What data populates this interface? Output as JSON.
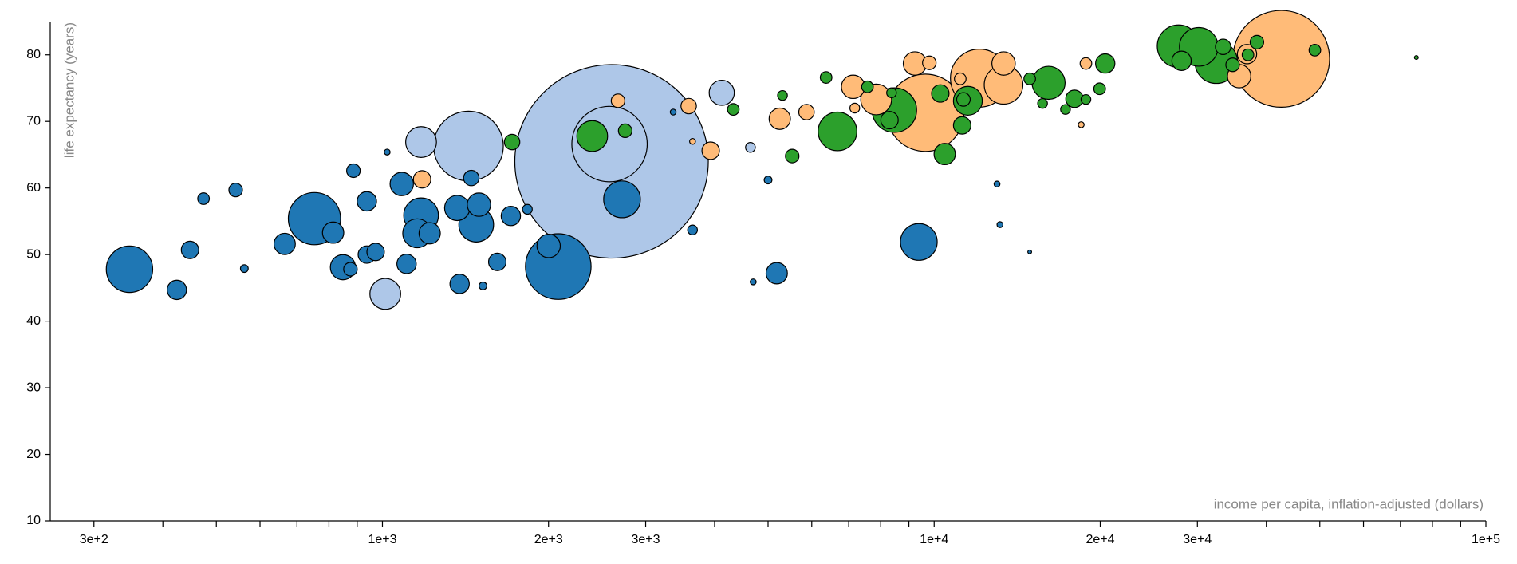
{
  "chart_data": {
    "type": "bubble",
    "xlog": true,
    "xlabel": "income per capita, inflation-adjusted (dollars)",
    "ylabel": "life expectancy (years)",
    "xlim": [
      250,
      100000
    ],
    "ylim": [
      10,
      85
    ],
    "xticks": [
      {
        "value": 300,
        "label": "3e+2"
      },
      {
        "value": 1000,
        "label": "1e+3"
      },
      {
        "value": 2000,
        "label": "2e+3"
      },
      {
        "value": 3000,
        "label": "3e+3"
      },
      {
        "value": 10000,
        "label": "1e+4"
      },
      {
        "value": 20000,
        "label": "2e+4"
      },
      {
        "value": 30000,
        "label": "3e+4"
      },
      {
        "value": 100000,
        "label": "1e+5"
      }
    ],
    "xminorticks": [
      400,
      500,
      600,
      700,
      800,
      900,
      4000,
      5000,
      6000,
      7000,
      8000,
      9000,
      40000,
      50000,
      60000,
      70000,
      80000,
      90000
    ],
    "yticks": [
      10,
      20,
      30,
      40,
      50,
      60,
      70,
      80
    ],
    "series": [
      {
        "color": "#1f77b4",
        "x": [
          348,
          424,
          448,
          474,
          542,
          562,
          665,
          753,
          814,
          848,
          875,
          886,
          937,
          937,
          972,
          1106,
          1084,
          1020,
          1175,
          1156,
          1218,
          1366,
          1479,
          1496,
          1449,
          1380,
          1521,
          1615,
          1709,
          1831,
          2083,
          2001,
          2718,
          3648,
          4699,
          5184,
          5000,
          9380,
          13000,
          13160,
          14900,
          3365
        ],
        "values": [
          47.8,
          44.7,
          50.7,
          58.4,
          59.7,
          47.9,
          51.6,
          55.4,
          53.3,
          48.1,
          47.8,
          62.6,
          58.0,
          50.0,
          50.4,
          48.6,
          60.6,
          65.4,
          55.9,
          53.2,
          53.2,
          57.0,
          54.5,
          57.5,
          61.5,
          45.6,
          45.3,
          48.9,
          55.8,
          56.8,
          48.2,
          51.3,
          58.3,
          53.7,
          45.9,
          47.2,
          61.2,
          51.9,
          60.6,
          54.5,
          50.4,
          71.4
        ],
        "sizes": [
          75,
          13,
          10.6,
          4.7,
          6.4,
          2.1,
          15.8,
          95,
          15.8,
          22,
          6.4,
          6.4,
          13,
          10.6,
          10.6,
          13,
          19,
          1.2,
          42,
          29,
          15.8,
          22,
          42,
          19,
          8.3,
          13,
          2.1,
          10.6,
          13,
          3.3,
          150,
          19,
          47,
          3.3,
          1.2,
          15.8,
          2.1,
          47,
          1.2,
          1.2,
          0.5,
          1.2
        ]
      },
      {
        "color": "#aec7e8",
        "x": [
          2602,
          2580,
          1432,
          1175,
          1012,
          4121,
          4645
        ],
        "values": [
          64.0,
          66.6,
          66.3,
          66.9,
          44.1,
          74.3,
          66.1
        ],
        "sizes": [
          1303,
          198,
          169,
          33,
          33,
          22,
          3.3
        ]
      },
      {
        "color": "#ffbb78",
        "x": [
          42560,
          9640,
          12080,
          13360,
          13360,
          9230,
          9800,
          7850,
          7130,
          7180,
          5870,
          5250,
          3935,
          3590,
          3648,
          2673,
          1180,
          11150,
          18840,
          18470,
          35710,
          36900
        ],
        "values": [
          79.4,
          71.3,
          76.5,
          75.5,
          78.7,
          78.7,
          78.8,
          73.3,
          75.2,
          72.0,
          71.4,
          70.4,
          65.6,
          72.3,
          67.0,
          73.1,
          61.3,
          76.4,
          78.7,
          69.5,
          76.8,
          80.1
        ],
        "sizes": [
          326,
          208,
          117,
          52,
          19,
          19,
          6.4,
          33,
          19,
          3.3,
          8.3,
          15.8,
          10.6,
          8.3,
          1.2,
          6.4,
          10.6,
          4.7,
          4.7,
          1.2,
          19,
          13
        ]
      },
      {
        "color": "#2ca02c",
        "x": [
          27730,
          30170,
          32460,
          28080,
          33400,
          38460,
          34750,
          37050,
          48980,
          74800,
          20420,
          19950,
          17960,
          17300,
          18840,
          16120,
          15720,
          14900,
          11510,
          11240,
          11300,
          10260,
          10450,
          8470,
          8300,
          8370,
          7570,
          6680,
          6370,
          5310,
          5530,
          4325,
          2754,
          2400,
          1718
        ],
        "values": [
          81.3,
          81.2,
          78.9,
          79.1,
          81.2,
          81.9,
          78.5,
          80.0,
          80.7,
          79.6,
          78.7,
          74.9,
          73.4,
          71.8,
          73.3,
          75.8,
          72.7,
          76.4,
          73.1,
          69.4,
          73.3,
          74.2,
          65.1,
          71.7,
          70.2,
          74.3,
          75.2,
          68.5,
          76.6,
          73.9,
          64.8,
          71.8,
          68.6,
          67.8,
          66.9
        ],
        "sizes": [
          63,
          52,
          63,
          13,
          8.3,
          6.4,
          6.4,
          4.7,
          4.7,
          0.5,
          13,
          4.7,
          10.6,
          3.3,
          3.3,
          38,
          3.3,
          4.7,
          29,
          10.6,
          6.4,
          10.6,
          15.8,
          69,
          10.6,
          3.3,
          4.7,
          52,
          4.7,
          3.3,
          6.4,
          4.7,
          6.4,
          33,
          8.3
        ]
      }
    ]
  }
}
